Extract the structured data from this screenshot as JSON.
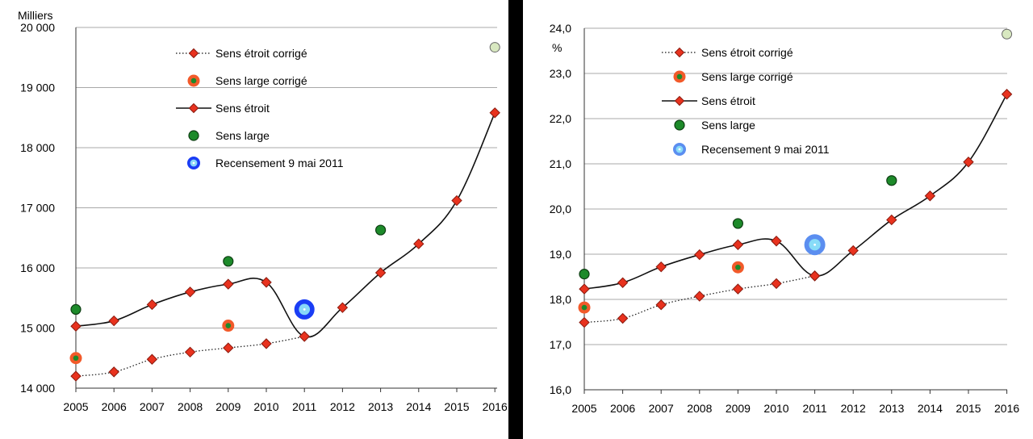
{
  "colors": {
    "diamond_fill": "#e8321e",
    "diamond_stroke": "#8a1a0e",
    "green": "#1d8a2a",
    "green_ring": "#0d3d12",
    "orange": "#f25a2a",
    "grid": "#a8a8a8",
    "census_left": "#1a3df5",
    "census_left_inner": "#88d8f8",
    "census_right": "#5b8ef0",
    "census_right_inner": "#88dcf8",
    "pale_point": "#d8e8c0"
  },
  "chart_data": [
    {
      "type": "line",
      "ylabel": "Milliers",
      "ylim": [
        14000,
        20000
      ],
      "yticks": [
        14000,
        15000,
        16000,
        17000,
        18000,
        19000,
        20000
      ],
      "ytick_labels": [
        "14 000",
        "15 000",
        "16 000",
        "17 000",
        "18 000",
        "19 000",
        "20 000"
      ],
      "categories": [
        "2005",
        "2006",
        "2007",
        "2008",
        "2009",
        "2010",
        "2011",
        "2012",
        "2013",
        "2014",
        "2015",
        "2016"
      ],
      "legend_position": "top-center",
      "grid": true,
      "series": [
        {
          "name": "Sens étroit corrigé",
          "style": "dotted-diamond",
          "x": [
            "2005",
            "2006",
            "2007",
            "2008",
            "2009",
            "2010",
            "2011"
          ],
          "values": [
            14200,
            14270,
            14480,
            14600,
            14670,
            14740,
            14860
          ]
        },
        {
          "name": "Sens large corrigé",
          "style": "orange-dot",
          "x": [
            "2005",
            "2009"
          ],
          "values": [
            14500,
            15040
          ]
        },
        {
          "name": "Sens étroit",
          "style": "solid-diamond",
          "x": [
            "2005",
            "2006",
            "2007",
            "2008",
            "2009",
            "2010",
            "2011",
            "2012",
            "2013",
            "2014",
            "2015",
            "2016"
          ],
          "values": [
            15030,
            15120,
            15390,
            15600,
            15730,
            15760,
            14860,
            15340,
            15920,
            16400,
            17120,
            18580
          ]
        },
        {
          "name": "Sens large",
          "style": "green-dot",
          "x": [
            "2005",
            "2009",
            "2013"
          ],
          "values": [
            15310,
            16110,
            16630
          ]
        },
        {
          "name": "Recensement  9 mai 2011",
          "style": "census-dot",
          "x": [
            "2011"
          ],
          "values": [
            15310
          ]
        },
        {
          "name": "",
          "style": "pale-dot",
          "x": [
            "2016"
          ],
          "values": [
            19670
          ]
        }
      ]
    },
    {
      "type": "line",
      "ylabel": "%",
      "ylim": [
        16.0,
        24.0
      ],
      "yticks": [
        16,
        17,
        18,
        19,
        20,
        21,
        22,
        23,
        24
      ],
      "ytick_labels": [
        "16,0",
        "17,0",
        "18,0",
        "19,0",
        "20,0",
        "21,0",
        "22,0",
        "23,0",
        "24,0"
      ],
      "categories": [
        "2005",
        "2006",
        "2007",
        "2008",
        "2009",
        "2010",
        "2011",
        "2012",
        "2013",
        "2014",
        "2015",
        "2016"
      ],
      "legend_position": "top-center",
      "grid": true,
      "series": [
        {
          "name": "Sens étroit corrigé",
          "style": "dotted-diamond",
          "x": [
            "2005",
            "2006",
            "2007",
            "2008",
            "2009",
            "2010",
            "2011"
          ],
          "values": [
            17.49,
            17.58,
            17.88,
            18.07,
            18.23,
            18.35,
            18.52
          ]
        },
        {
          "name": "Sens large corrigé",
          "style": "orange-dot",
          "x": [
            "2005",
            "2009"
          ],
          "values": [
            17.82,
            18.71
          ]
        },
        {
          "name": "Sens étroit",
          "style": "solid-diamond",
          "x": [
            "2005",
            "2006",
            "2007",
            "2008",
            "2009",
            "2010",
            "2011",
            "2012",
            "2013",
            "2014",
            "2015",
            "2016"
          ],
          "values": [
            18.23,
            18.37,
            18.72,
            18.99,
            19.21,
            19.29,
            18.52,
            19.08,
            19.76,
            20.29,
            21.04,
            22.54
          ]
        },
        {
          "name": "Sens large",
          "style": "green-dot",
          "x": [
            "2005",
            "2009",
            "2013"
          ],
          "values": [
            18.56,
            19.68,
            20.63
          ]
        },
        {
          "name": "Recensement  9 mai 2011",
          "style": "census-dot",
          "x": [
            "2011"
          ],
          "values": [
            19.21
          ]
        },
        {
          "name": "",
          "style": "pale-dot",
          "x": [
            "2016"
          ],
          "values": [
            23.87
          ]
        }
      ]
    }
  ]
}
